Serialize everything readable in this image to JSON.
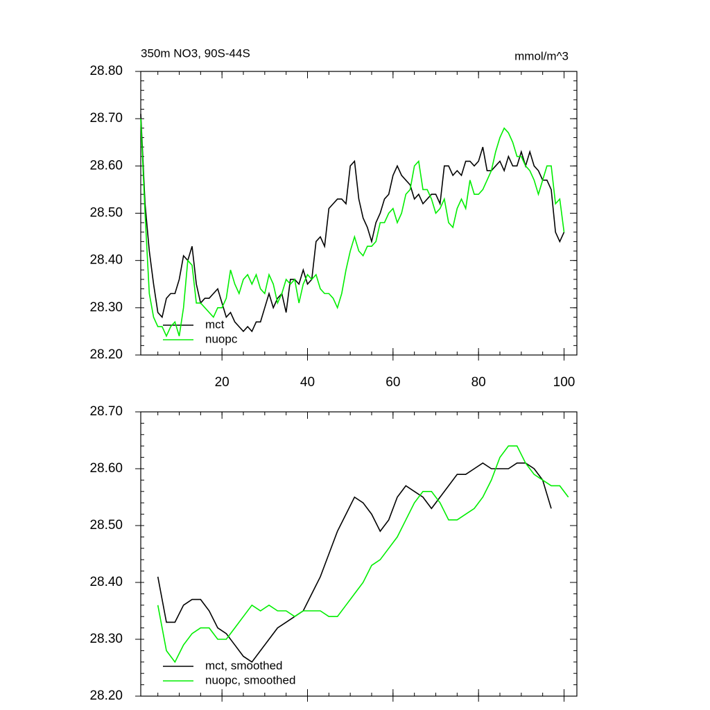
{
  "chart_data": [
    {
      "type": "line",
      "title": "350m NO3, 90S-44S",
      "units": "mmol/m^3",
      "x": [
        1,
        2,
        3,
        4,
        5,
        6,
        7,
        8,
        9,
        10,
        11,
        12,
        13,
        14,
        15,
        16,
        17,
        18,
        19,
        20,
        21,
        22,
        23,
        24,
        25,
        26,
        27,
        28,
        29,
        30,
        31,
        32,
        33,
        34,
        35,
        36,
        37,
        38,
        39,
        40,
        41,
        42,
        43,
        44,
        45,
        46,
        47,
        48,
        49,
        50,
        51,
        52,
        53,
        54,
        55,
        56,
        57,
        58,
        59,
        60,
        61,
        62,
        63,
        64,
        65,
        66,
        67,
        68,
        69,
        70,
        71,
        72,
        73,
        74,
        75,
        76,
        77,
        78,
        79,
        80,
        81,
        82,
        83,
        84,
        85,
        86,
        87,
        88,
        89,
        90,
        91,
        92,
        93,
        94,
        95,
        96,
        97,
        98,
        99,
        100
      ],
      "series": [
        {
          "name": "mct",
          "color": "#000000",
          "values": [
            28.71,
            28.52,
            28.42,
            28.35,
            28.29,
            28.28,
            28.32,
            28.33,
            28.33,
            28.36,
            28.41,
            28.4,
            28.43,
            28.35,
            28.31,
            28.32,
            28.32,
            28.33,
            28.34,
            28.31,
            28.28,
            28.29,
            28.27,
            28.26,
            28.25,
            28.26,
            28.25,
            28.27,
            28.27,
            28.3,
            28.33,
            28.3,
            28.32,
            28.33,
            28.29,
            28.36,
            28.36,
            28.35,
            28.38,
            28.35,
            28.36,
            28.44,
            28.45,
            28.43,
            28.51,
            28.52,
            28.53,
            28.53,
            28.52,
            28.6,
            28.61,
            28.53,
            28.49,
            28.47,
            28.44,
            28.48,
            28.5,
            28.53,
            28.54,
            28.58,
            28.6,
            28.58,
            28.57,
            28.56,
            28.53,
            28.54,
            28.52,
            28.53,
            28.54,
            28.54,
            28.52,
            28.6,
            28.6,
            28.58,
            28.59,
            28.58,
            28.61,
            28.61,
            28.6,
            28.61,
            28.64,
            28.59,
            28.59,
            28.6,
            28.61,
            28.59,
            28.62,
            28.6,
            28.6,
            28.63,
            28.6,
            28.63,
            28.6,
            28.59,
            28.57,
            28.57,
            28.55,
            28.46,
            28.44,
            28.46
          ]
        },
        {
          "name": "nuopc",
          "color": "#00ee00",
          "values": [
            28.7,
            28.5,
            28.33,
            28.28,
            28.26,
            28.26,
            28.24,
            28.26,
            28.27,
            28.24,
            28.3,
            28.4,
            28.39,
            28.31,
            28.31,
            28.3,
            28.29,
            28.28,
            28.3,
            28.3,
            28.32,
            28.38,
            28.35,
            28.33,
            28.36,
            28.37,
            28.35,
            28.37,
            28.34,
            28.33,
            28.37,
            28.35,
            28.31,
            28.33,
            28.36,
            28.35,
            28.36,
            28.31,
            28.35,
            28.37,
            28.36,
            28.37,
            28.34,
            28.33,
            28.33,
            28.32,
            28.3,
            28.33,
            28.38,
            28.42,
            28.45,
            28.42,
            28.41,
            28.43,
            28.43,
            28.44,
            28.48,
            28.48,
            28.5,
            28.51,
            28.48,
            28.5,
            28.54,
            28.55,
            28.6,
            28.61,
            28.55,
            28.55,
            28.53,
            28.5,
            28.51,
            28.53,
            28.48,
            28.47,
            28.51,
            28.53,
            28.51,
            28.57,
            28.54,
            28.54,
            28.55,
            28.57,
            28.59,
            28.63,
            28.66,
            28.68,
            28.67,
            28.65,
            28.62,
            28.62,
            28.6,
            28.59,
            28.57,
            28.54,
            28.57,
            28.6,
            28.6,
            28.52,
            28.53,
            28.46
          ]
        }
      ],
      "xlim": [
        1,
        103
      ],
      "xticks": [
        20,
        40,
        60,
        80,
        100
      ],
      "ylim": [
        28.2,
        28.8
      ],
      "yticks": [
        {
          "value": 28.2,
          "label": "28.20"
        },
        {
          "value": 28.3,
          "label": "28.30"
        },
        {
          "value": 28.4,
          "label": "28.40"
        },
        {
          "value": 28.5,
          "label": "28.50"
        },
        {
          "value": 28.6,
          "label": "28.60"
        },
        {
          "value": 28.7,
          "label": "28.70"
        },
        {
          "value": 28.8,
          "label": "28.80"
        }
      ],
      "legend": "lower left"
    },
    {
      "type": "line",
      "x": [
        5,
        7,
        9,
        11,
        13,
        15,
        17,
        19,
        21,
        23,
        25,
        27,
        29,
        31,
        33,
        35,
        37,
        39,
        41,
        43,
        45,
        47,
        49,
        51,
        53,
        55,
        57,
        59,
        61,
        63,
        65,
        67,
        69,
        71,
        73,
        75,
        77,
        79,
        81,
        83,
        85,
        87,
        89,
        91,
        93,
        95,
        97,
        99,
        101
      ],
      "series": [
        {
          "name": "mct, smoothed",
          "color": "#000000",
          "values": [
            28.41,
            28.33,
            28.33,
            28.36,
            28.37,
            28.37,
            28.35,
            28.32,
            28.31,
            28.29,
            28.27,
            28.26,
            28.28,
            28.3,
            28.32,
            28.33,
            28.34,
            28.35,
            28.38,
            28.41,
            28.45,
            28.49,
            28.52,
            28.55,
            28.54,
            28.52,
            28.49,
            28.51,
            28.55,
            28.57,
            28.56,
            28.55,
            28.53,
            28.55,
            28.57,
            28.59,
            28.59,
            28.6,
            28.61,
            28.6,
            28.6,
            28.6,
            28.61,
            28.61,
            28.6,
            28.58,
            28.53,
            null,
            null
          ]
        },
        {
          "name": "nuopc, smoothed",
          "color": "#00ee00",
          "values": [
            28.36,
            28.28,
            28.26,
            28.29,
            28.31,
            28.32,
            28.32,
            28.3,
            28.3,
            28.32,
            28.34,
            28.36,
            28.35,
            28.36,
            28.35,
            28.35,
            28.34,
            28.35,
            28.35,
            28.35,
            28.34,
            28.34,
            28.36,
            28.38,
            28.4,
            28.43,
            28.44,
            28.46,
            28.48,
            28.51,
            28.54,
            28.56,
            28.56,
            28.54,
            28.51,
            28.51,
            28.52,
            28.53,
            28.55,
            28.58,
            28.62,
            28.64,
            28.64,
            28.61,
            28.59,
            28.58,
            28.57,
            28.57,
            28.55
          ]
        }
      ],
      "xlim": [
        1,
        103
      ],
      "xticks": [
        20,
        40,
        60,
        80,
        100
      ],
      "ylim": [
        28.2,
        28.7
      ],
      "yticks": [
        {
          "value": 28.2,
          "label": "28.20"
        },
        {
          "value": 28.3,
          "label": "28.30"
        },
        {
          "value": 28.4,
          "label": "28.40"
        },
        {
          "value": 28.5,
          "label": "28.50"
        },
        {
          "value": 28.6,
          "label": "28.60"
        },
        {
          "value": 28.7,
          "label": "28.70"
        }
      ],
      "legend": "lower left"
    }
  ]
}
